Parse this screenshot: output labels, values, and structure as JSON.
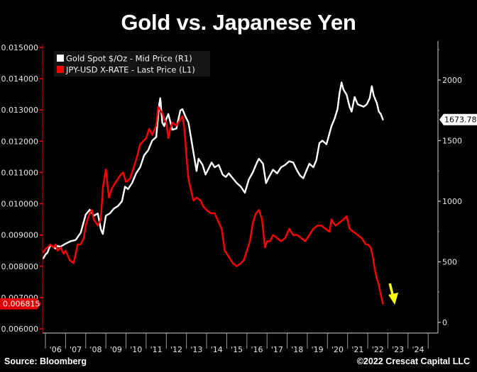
{
  "chart_data": {
    "type": "line",
    "title": "Gold vs. Japanese Yen",
    "xlabel": "",
    "x_tick_labels": [
      "'06",
      "'07",
      "'08",
      "'09",
      "'10",
      "'11",
      "'12",
      "'13",
      "'14",
      "'15",
      "'16",
      "'17",
      "'18",
      "'19",
      "'20",
      "'21",
      "'22",
      "'23",
      "'24"
    ],
    "xlim": [
      2005.9,
      2025.5
    ],
    "left_axis": {
      "label": "JPY-USD X-RATE",
      "ylim": [
        0.0058,
        0.0152
      ],
      "ticks": [
        "0.015000",
        "0.014000",
        "0.013000",
        "0.012000",
        "0.011000",
        "0.010000",
        "0.009000",
        "0.008000",
        "0.007000",
        "0.006000"
      ],
      "tick_values": [
        0.015,
        0.014,
        0.013,
        0.012,
        0.011,
        0.01,
        0.009,
        0.008,
        0.007,
        0.006
      ],
      "color": "#cc0000",
      "last_value_label": "0.006815"
    },
    "right_axis": {
      "label": "Gold Spot $/Oz",
      "ylim": [
        -50,
        2320
      ],
      "ticks": [
        "2000",
        "1500",
        "1000",
        "500",
        "0"
      ],
      "tick_values": [
        2000,
        1500,
        1000,
        500,
        0
      ],
      "color": "#9a9a9a",
      "last_value_label": "1673.785"
    },
    "legend": {
      "placement": "top-left",
      "entries": [
        {
          "label": "Gold Spot $/Oz - Mid Price (R1)",
          "color": "#ffffff"
        },
        {
          "label": "JPY-USD X-RATE - Last Price (L1)",
          "color": "#ff0000"
        }
      ]
    },
    "series": [
      {
        "name": "Gold Spot $/Oz - Mid Price (R1)",
        "axis": "right",
        "color": "#ffffff",
        "x": [
          2005.9,
          2006.0,
          2006.1,
          2006.25,
          2006.4,
          2006.5,
          2006.6,
          2006.75,
          2006.9,
          2007.0,
          2007.25,
          2007.5,
          2007.75,
          2008.0,
          2008.2,
          2008.4,
          2008.6,
          2008.75,
          2008.85,
          2009.0,
          2009.2,
          2009.4,
          2009.6,
          2009.8,
          2009.95,
          2010.1,
          2010.3,
          2010.5,
          2010.7,
          2010.9,
          2011.1,
          2011.3,
          2011.5,
          2011.65,
          2011.7,
          2011.8,
          2011.9,
          2012.0,
          2012.1,
          2012.3,
          2012.5,
          2012.7,
          2012.8,
          2012.95,
          2013.1,
          2013.25,
          2013.35,
          2013.5,
          2013.6,
          2013.8,
          2013.95,
          2014.1,
          2014.25,
          2014.4,
          2014.6,
          2014.8,
          2014.95,
          2015.1,
          2015.3,
          2015.5,
          2015.7,
          2015.9,
          2016.1,
          2016.3,
          2016.5,
          2016.6,
          2016.8,
          2016.95,
          2017.1,
          2017.3,
          2017.5,
          2017.7,
          2017.9,
          2018.1,
          2018.3,
          2018.5,
          2018.65,
          2018.8,
          2018.95,
          2019.1,
          2019.3,
          2019.45,
          2019.6,
          2019.75,
          2019.95,
          2020.1,
          2020.2,
          2020.35,
          2020.5,
          2020.6,
          2020.7,
          2020.8,
          2020.95,
          2021.1,
          2021.2,
          2021.35,
          2021.5,
          2021.65,
          2021.8,
          2021.95,
          2022.1,
          2022.2,
          2022.3,
          2022.45,
          2022.55,
          2022.65,
          2022.75
        ],
        "y": [
          530,
          560,
          575,
          640,
          620,
          610,
          630,
          625,
          640,
          650,
          670,
          680,
          740,
          890,
          930,
          880,
          900,
          770,
          730,
          880,
          900,
          940,
          960,
          1000,
          1120,
          1100,
          1150,
          1230,
          1280,
          1380,
          1420,
          1500,
          1530,
          1800,
          1850,
          1650,
          1620,
          1680,
          1720,
          1590,
          1600,
          1750,
          1760,
          1700,
          1650,
          1500,
          1400,
          1250,
          1350,
          1300,
          1220,
          1270,
          1320,
          1280,
          1300,
          1220,
          1200,
          1230,
          1190,
          1150,
          1120,
          1070,
          1180,
          1240,
          1320,
          1350,
          1310,
          1150,
          1200,
          1260,
          1230,
          1280,
          1300,
          1330,
          1320,
          1250,
          1210,
          1190,
          1250,
          1310,
          1280,
          1340,
          1480,
          1500,
          1470,
          1560,
          1620,
          1680,
          1760,
          1890,
          1980,
          1920,
          1880,
          1780,
          1740,
          1860,
          1800,
          1790,
          1780,
          1800,
          1850,
          1950,
          1870,
          1810,
          1740,
          1720,
          1674
        ]
      },
      {
        "name": "JPY-USD X-RATE - Last Price (L1)",
        "axis": "left",
        "color": "#ff0000",
        "x": [
          2005.9,
          2006.0,
          2006.1,
          2006.25,
          2006.4,
          2006.5,
          2006.6,
          2006.75,
          2006.9,
          2007.0,
          2007.2,
          2007.4,
          2007.5,
          2007.6,
          2007.75,
          2007.9,
          2008.0,
          2008.2,
          2008.3,
          2008.4,
          2008.6,
          2008.75,
          2008.85,
          2009.0,
          2009.15,
          2009.3,
          2009.5,
          2009.7,
          2009.85,
          2010.0,
          2010.2,
          2010.4,
          2010.55,
          2010.7,
          2010.85,
          2011.0,
          2011.15,
          2011.3,
          2011.5,
          2011.6,
          2011.8,
          2011.9,
          2012.0,
          2012.1,
          2012.2,
          2012.3,
          2012.5,
          2012.7,
          2012.8,
          2012.9,
          2013.0,
          2013.1,
          2013.2,
          2013.35,
          2013.5,
          2013.7,
          2013.85,
          2014.0,
          2014.2,
          2014.4,
          2014.6,
          2014.75,
          2014.9,
          2015.1,
          2015.3,
          2015.5,
          2015.7,
          2015.85,
          2016.0,
          2016.15,
          2016.3,
          2016.45,
          2016.6,
          2016.75,
          2016.9,
          2017.0,
          2017.15,
          2017.3,
          2017.5,
          2017.7,
          2017.9,
          2018.1,
          2018.3,
          2018.5,
          2018.7,
          2018.9,
          2019.1,
          2019.3,
          2019.5,
          2019.7,
          2019.9,
          2020.1,
          2020.2,
          2020.4,
          2020.6,
          2020.8,
          2020.95,
          2021.1,
          2021.3,
          2021.5,
          2021.7,
          2021.9,
          2022.0,
          2022.15,
          2022.25,
          2022.35,
          2022.45,
          2022.55,
          2022.65,
          2022.75
        ],
        "y": [
          0.00845,
          0.00855,
          0.0086,
          0.0087,
          0.0086,
          0.0087,
          0.0085,
          0.0086,
          0.0084,
          0.0085,
          0.0082,
          0.0081,
          0.0084,
          0.0087,
          0.0087,
          0.0089,
          0.0093,
          0.0097,
          0.0098,
          0.0095,
          0.0093,
          0.0095,
          0.0105,
          0.0111,
          0.0102,
          0.0105,
          0.0107,
          0.0109,
          0.011,
          0.0107,
          0.0108,
          0.0112,
          0.0115,
          0.0119,
          0.012,
          0.0121,
          0.0124,
          0.0122,
          0.0125,
          0.0131,
          0.0129,
          0.0127,
          0.0126,
          0.0121,
          0.0124,
          0.0126,
          0.0125,
          0.0127,
          0.0128,
          0.0124,
          0.0115,
          0.0108,
          0.0105,
          0.0101,
          0.0102,
          0.0101,
          0.0099,
          0.0098,
          0.0097,
          0.0097,
          0.0094,
          0.0092,
          0.0085,
          0.0083,
          0.0081,
          0.008,
          0.0081,
          0.0082,
          0.0085,
          0.0088,
          0.0094,
          0.0097,
          0.0098,
          0.0095,
          0.0086,
          0.0088,
          0.0088,
          0.009,
          0.0089,
          0.0088,
          0.0089,
          0.0092,
          0.009,
          0.009,
          0.0089,
          0.0088,
          0.009,
          0.0092,
          0.0093,
          0.0093,
          0.0092,
          0.0091,
          0.0095,
          0.0093,
          0.0094,
          0.0095,
          0.0096,
          0.0092,
          0.0091,
          0.009,
          0.0089,
          0.0087,
          0.0087,
          0.0086,
          0.0083,
          0.0079,
          0.0076,
          0.0074,
          0.0071,
          0.0068
        ]
      }
    ],
    "annotations": [
      {
        "type": "arrow",
        "color": "#ffff00",
        "direction": "down",
        "near_x": 2023.2
      }
    ],
    "grid": false
  },
  "footer": {
    "source": "Source: Bloomberg",
    "copyright": "©2022 Crescat Capital LLC"
  }
}
